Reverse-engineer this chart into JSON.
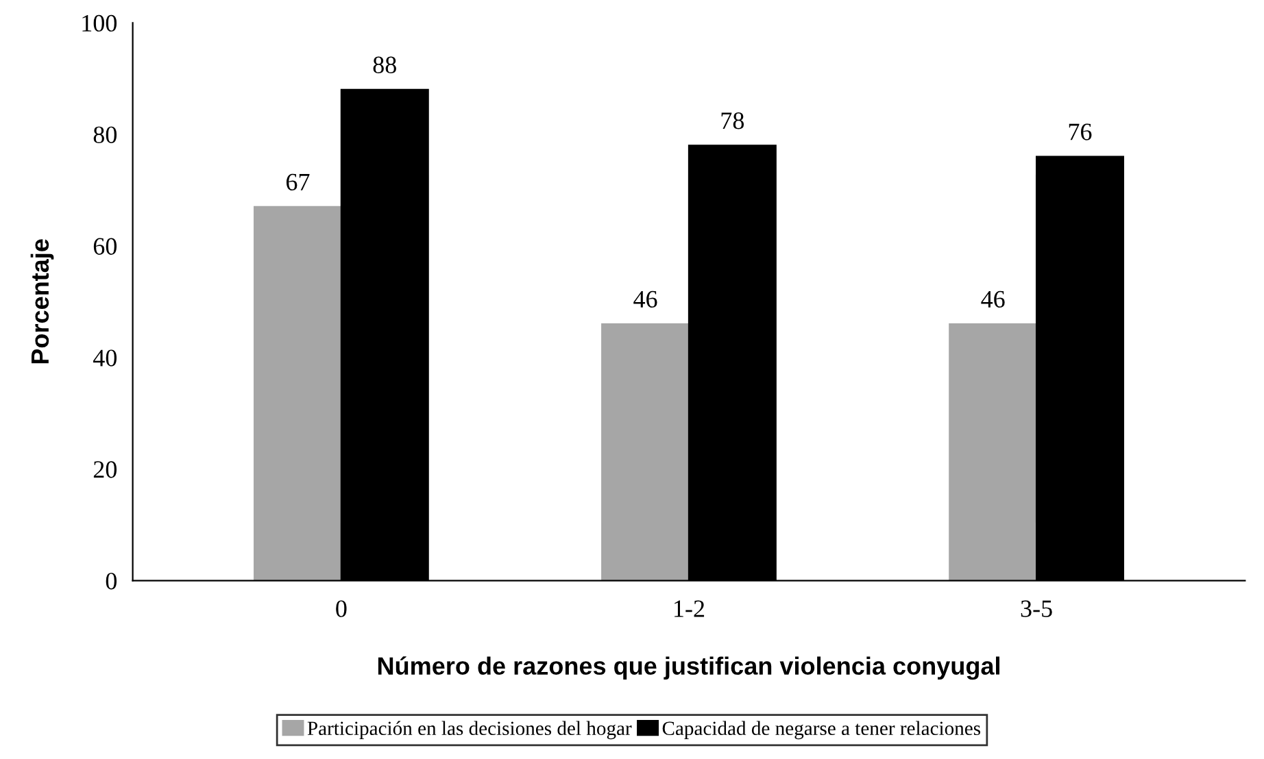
{
  "chart_data": {
    "type": "bar",
    "xlabel": "Número de razones que justifican violencia conyugal",
    "ylabel": "Porcentaje",
    "categories": [
      "0",
      "1-2",
      "3-5"
    ],
    "series": [
      {
        "name": "Participación en las decisiones del hogar",
        "color": "#a6a6a6",
        "values": [
          67,
          46,
          46
        ]
      },
      {
        "name": "Capacidad de negarse a tener relaciones",
        "color": "#000000",
        "values": [
          88,
          78,
          76
        ]
      }
    ],
    "ylim": [
      0,
      100
    ],
    "yticks": [
      0,
      20,
      40,
      60,
      80,
      100
    ],
    "grid": false,
    "legend": "bottom",
    "data_labels": true
  }
}
